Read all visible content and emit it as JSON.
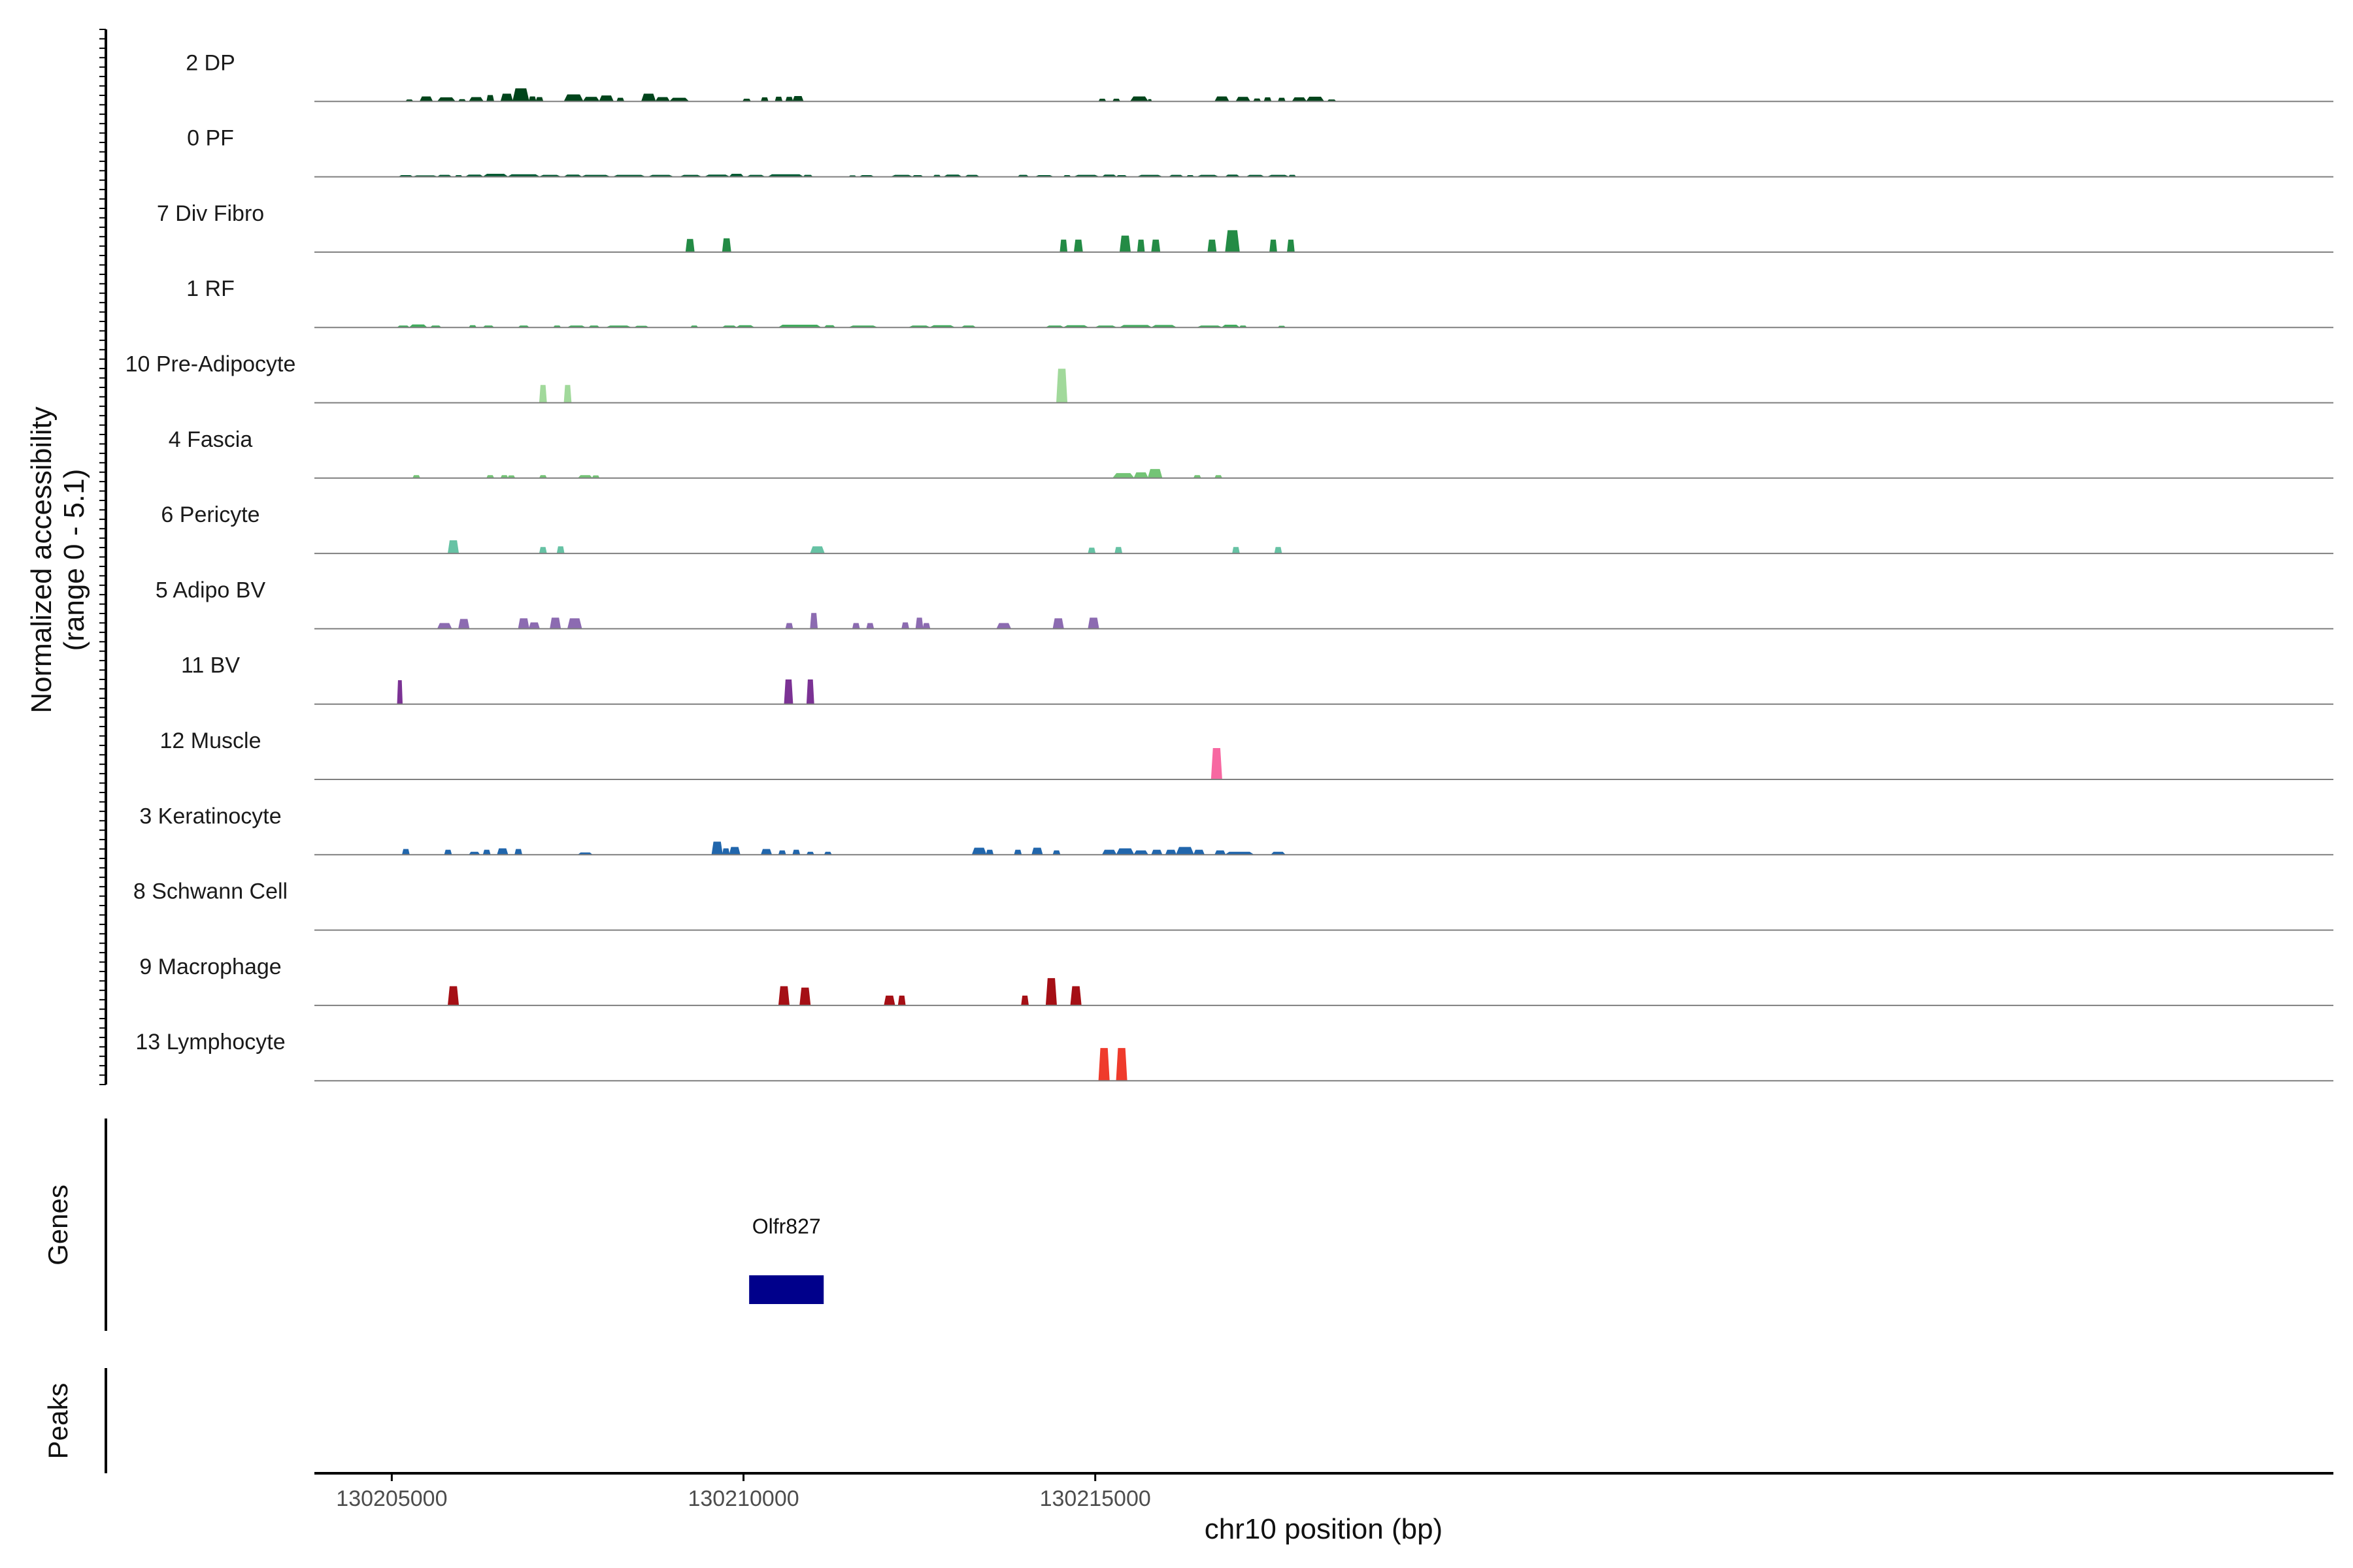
{
  "chart_data": {
    "type": "area",
    "ylabel": "Normalized accessibility",
    "ylabel_range": "(range 0 - 5.1)",
    "ylim": [
      0,
      5.1
    ],
    "xlabel": "chr10 position (bp)",
    "xlim": [
      130203900,
      130232600
    ],
    "x_ticks": [
      130205000,
      130210000,
      130215000
    ],
    "x_tick_labels": [
      "130205000",
      "130210000",
      "130215000"
    ],
    "gene_panel_label": "Genes",
    "peaks_panel_label": "Peaks",
    "genes": [
      {
        "name": "Olfr827",
        "start": 130210080,
        "end": 130211140,
        "color": "#00008B"
      }
    ],
    "tracks": [
      {
        "name": "2 DP",
        "color": "#00441B",
        "regions": [
          [
            130205200,
            130205300,
            0.12
          ],
          [
            130205400,
            130205580,
            0.35
          ],
          [
            130205650,
            130205900,
            0.28
          ],
          [
            130205950,
            130206050,
            0.15
          ],
          [
            130206100,
            130206300,
            0.3
          ],
          [
            130206350,
            130206450,
            0.45
          ],
          [
            130206550,
            130206720,
            0.55
          ],
          [
            130206720,
            130206950,
            0.95
          ],
          [
            130206950,
            130207050,
            0.35
          ],
          [
            130207050,
            130207150,
            0.3
          ],
          [
            130207450,
            130207720,
            0.5
          ],
          [
            130207720,
            130207950,
            0.32
          ],
          [
            130207950,
            130208150,
            0.42
          ],
          [
            130208200,
            130208300,
            0.25
          ],
          [
            130208550,
            130208750,
            0.55
          ],
          [
            130208750,
            130208950,
            0.3
          ],
          [
            130208950,
            130209220,
            0.25
          ],
          [
            130209990,
            130210100,
            0.18
          ],
          [
            130210250,
            130210350,
            0.28
          ],
          [
            130210450,
            130210550,
            0.33
          ],
          [
            130210600,
            130210700,
            0.32
          ],
          [
            130210700,
            130210850,
            0.38
          ],
          [
            130215050,
            130215150,
            0.18
          ],
          [
            130215250,
            130215350,
            0.18
          ],
          [
            130215500,
            130215750,
            0.35
          ],
          [
            130215750,
            130215800,
            0.15
          ],
          [
            130216700,
            130216900,
            0.35
          ],
          [
            130217000,
            130217200,
            0.32
          ],
          [
            130217250,
            130217350,
            0.2
          ],
          [
            130217400,
            130217500,
            0.28
          ],
          [
            130217600,
            130217700,
            0.25
          ],
          [
            130217800,
            130218000,
            0.28
          ],
          [
            130218000,
            130218250,
            0.33
          ],
          [
            130218300,
            130218420,
            0.12
          ]
        ]
      },
      {
        "name": "0 PF",
        "color": "#005A32",
        "regions": [
          [
            130205100,
            130205300,
            0.1
          ],
          [
            130205300,
            130205650,
            0.08
          ],
          [
            130205650,
            130205850,
            0.12
          ],
          [
            130205900,
            130206000,
            0.1
          ],
          [
            130206050,
            130206300,
            0.14
          ],
          [
            130206300,
            130206650,
            0.2
          ],
          [
            130206650,
            130207100,
            0.16
          ],
          [
            130207100,
            130207400,
            0.12
          ],
          [
            130207450,
            130207700,
            0.14
          ],
          [
            130207700,
            130208100,
            0.12
          ],
          [
            130208150,
            130208600,
            0.12
          ],
          [
            130208650,
            130209000,
            0.12
          ],
          [
            130209100,
            130209400,
            0.12
          ],
          [
            130209450,
            130209800,
            0.14
          ],
          [
            130209800,
            130210000,
            0.2
          ],
          [
            130210050,
            130210300,
            0.12
          ],
          [
            130210350,
            130210850,
            0.16
          ],
          [
            130210850,
            130210980,
            0.12
          ],
          [
            130211500,
            130211600,
            0.08
          ],
          [
            130211650,
            130211850,
            0.1
          ],
          [
            130212100,
            130212400,
            0.12
          ],
          [
            130212400,
            130212550,
            0.1
          ],
          [
            130212700,
            130212800,
            0.12
          ],
          [
            130212850,
            130213100,
            0.14
          ],
          [
            130213150,
            130213350,
            0.12
          ],
          [
            130213900,
            130214050,
            0.12
          ],
          [
            130214150,
            130214400,
            0.1
          ],
          [
            130214550,
            130214650,
            0.1
          ],
          [
            130214700,
            130215050,
            0.12
          ],
          [
            130215100,
            130215300,
            0.14
          ],
          [
            130215300,
            130215450,
            0.1
          ],
          [
            130215600,
            130215950,
            0.12
          ],
          [
            130216050,
            130216250,
            0.12
          ],
          [
            130216300,
            130216400,
            0.1
          ],
          [
            130216450,
            130216750,
            0.12
          ],
          [
            130216850,
            130217050,
            0.14
          ],
          [
            130217150,
            130217400,
            0.12
          ],
          [
            130217450,
            130217750,
            0.12
          ],
          [
            130217750,
            130217850,
            0.12
          ]
        ]
      },
      {
        "name": "7 Div Fibro",
        "color": "#238B45",
        "regions": [
          [
            130209180,
            130209300,
            0.95
          ],
          [
            130209700,
            130209820,
            1.0
          ],
          [
            130214500,
            130214600,
            0.9
          ],
          [
            130214700,
            130214820,
            0.9
          ],
          [
            130215350,
            130215500,
            1.2
          ],
          [
            130215600,
            130215700,
            0.9
          ],
          [
            130215800,
            130215920,
            0.9
          ],
          [
            130216600,
            130216720,
            0.9
          ],
          [
            130216850,
            130217050,
            1.6
          ],
          [
            130217480,
            130217580,
            0.9
          ],
          [
            130217730,
            130217830,
            0.9
          ]
        ]
      },
      {
        "name": "1 RF",
        "color": "#41AB5D",
        "regions": [
          [
            130205080,
            130205250,
            0.12
          ],
          [
            130205250,
            130205500,
            0.2
          ],
          [
            130205550,
            130205700,
            0.12
          ],
          [
            130206100,
            130206200,
            0.14
          ],
          [
            130206300,
            130206450,
            0.12
          ],
          [
            130206800,
            130206950,
            0.12
          ],
          [
            130207300,
            130207400,
            0.12
          ],
          [
            130207500,
            130207750,
            0.12
          ],
          [
            130207800,
            130207950,
            0.12
          ],
          [
            130208050,
            130208400,
            0.12
          ],
          [
            130208450,
            130208650,
            0.1
          ],
          [
            130209250,
            130209350,
            0.12
          ],
          [
            130209700,
            130209900,
            0.12
          ],
          [
            130209900,
            130210150,
            0.14
          ],
          [
            130210500,
            130211100,
            0.18
          ],
          [
            130211150,
            130211300,
            0.14
          ],
          [
            130211500,
            130211900,
            0.12
          ],
          [
            130212350,
            130212650,
            0.12
          ],
          [
            130212650,
            130213000,
            0.14
          ],
          [
            130213100,
            130213300,
            0.12
          ],
          [
            130214300,
            130214550,
            0.12
          ],
          [
            130214550,
            130214900,
            0.14
          ],
          [
            130215000,
            130215300,
            0.12
          ],
          [
            130215350,
            130215800,
            0.16
          ],
          [
            130215800,
            130216150,
            0.16
          ],
          [
            130216450,
            130216800,
            0.12
          ],
          [
            130216800,
            130217050,
            0.18
          ],
          [
            130217050,
            130217150,
            0.12
          ],
          [
            130217600,
            130217700,
            0.1
          ]
        ]
      },
      {
        "name": "10 Pre-Adipocyte",
        "color": "#A1D99B",
        "regions": [
          [
            130207100,
            130207200,
            1.3
          ],
          [
            130207450,
            130207550,
            1.3
          ],
          [
            130214450,
            130214600,
            2.5
          ]
        ]
      },
      {
        "name": "4 Fascia",
        "color": "#74C476",
        "regions": [
          [
            130205300,
            130205400,
            0.2
          ],
          [
            130206350,
            130206450,
            0.2
          ],
          [
            130206550,
            130206650,
            0.2
          ],
          [
            130206650,
            130206750,
            0.18
          ],
          [
            130207100,
            130207200,
            0.2
          ],
          [
            130207650,
            130207850,
            0.2
          ],
          [
            130207850,
            130207950,
            0.18
          ],
          [
            130215250,
            130215550,
            0.35
          ],
          [
            130215550,
            130215750,
            0.4
          ],
          [
            130215750,
            130215950,
            0.65
          ],
          [
            130216400,
            130216500,
            0.2
          ],
          [
            130216700,
            130216800,
            0.2
          ]
        ]
      },
      {
        "name": "6 Pericyte",
        "color": "#66C2A4",
        "regions": [
          [
            130205800,
            130205950,
            0.95
          ],
          [
            130207100,
            130207200,
            0.45
          ],
          [
            130207350,
            130207450,
            0.5
          ],
          [
            130210950,
            130211150,
            0.5
          ],
          [
            130214900,
            130215000,
            0.4
          ],
          [
            130215280,
            130215380,
            0.45
          ],
          [
            130216950,
            130217050,
            0.45
          ],
          [
            130217550,
            130217650,
            0.45
          ]
        ]
      },
      {
        "name": "5 Adipo BV",
        "color": "#8C6BB1",
        "regions": [
          [
            130205650,
            130205850,
            0.4
          ],
          [
            130205950,
            130206100,
            0.7
          ],
          [
            130206800,
            130206950,
            0.75
          ],
          [
            130206950,
            130207100,
            0.45
          ],
          [
            130207250,
            130207400,
            0.8
          ],
          [
            130207500,
            130207700,
            0.75
          ],
          [
            130210600,
            130210700,
            0.4
          ],
          [
            130210950,
            130211050,
            1.15
          ],
          [
            130211550,
            130211650,
            0.4
          ],
          [
            130211750,
            130211850,
            0.4
          ],
          [
            130212250,
            130212350,
            0.45
          ],
          [
            130212450,
            130212550,
            0.8
          ],
          [
            130212550,
            130212650,
            0.4
          ],
          [
            130213600,
            130213800,
            0.4
          ],
          [
            130214400,
            130214550,
            0.75
          ],
          [
            130214900,
            130215050,
            0.8
          ]
        ]
      },
      {
        "name": "11 BV",
        "color": "#7B3294",
        "regions": [
          [
            130205080,
            130205150,
            1.75
          ],
          [
            130210580,
            130210700,
            1.8
          ],
          [
            130210900,
            130211000,
            1.8
          ]
        ]
      },
      {
        "name": "12 Muscle",
        "color": "#F768A1",
        "regions": [
          [
            130216650,
            130216800,
            2.3
          ]
        ]
      },
      {
        "name": "3 Keratinocyte",
        "color": "#2166AC",
        "regions": [
          [
            130205150,
            130205250,
            0.4
          ],
          [
            130205750,
            130205850,
            0.35
          ],
          [
            130206100,
            130206250,
            0.2
          ],
          [
            130206300,
            130206400,
            0.35
          ],
          [
            130206500,
            130206650,
            0.45
          ],
          [
            130206750,
            130206850,
            0.4
          ],
          [
            130207650,
            130207850,
            0.15
          ],
          [
            130209550,
            130209700,
            0.95
          ],
          [
            130209700,
            130209800,
            0.45
          ],
          [
            130209800,
            130209950,
            0.55
          ],
          [
            130210250,
            130210400,
            0.4
          ],
          [
            130210500,
            130210600,
            0.3
          ],
          [
            130210700,
            130210800,
            0.35
          ],
          [
            130210900,
            130211000,
            0.2
          ],
          [
            130211150,
            130211250,
            0.2
          ],
          [
            130213250,
            130213450,
            0.5
          ],
          [
            130213450,
            130213550,
            0.35
          ],
          [
            130213850,
            130213950,
            0.35
          ],
          [
            130214100,
            130214250,
            0.5
          ],
          [
            130214400,
            130214500,
            0.3
          ],
          [
            130215100,
            130215300,
            0.35
          ],
          [
            130215300,
            130215550,
            0.45
          ],
          [
            130215550,
            130215750,
            0.3
          ],
          [
            130215800,
            130215950,
            0.35
          ],
          [
            130216000,
            130216150,
            0.35
          ],
          [
            130216150,
            130216400,
            0.55
          ],
          [
            130216400,
            130216550,
            0.35
          ],
          [
            130216700,
            130216850,
            0.3
          ],
          [
            130216850,
            130217250,
            0.2
          ],
          [
            130217500,
            130217700,
            0.2
          ]
        ]
      },
      {
        "name": "8 Schwann Cell",
        "color": "#000000",
        "regions": []
      },
      {
        "name": "9 Macrophage",
        "color": "#A50F15",
        "regions": [
          [
            130205800,
            130205950,
            1.4
          ],
          [
            130210500,
            130210650,
            1.4
          ],
          [
            130210800,
            130210950,
            1.3
          ],
          [
            130212000,
            130212150,
            0.7
          ],
          [
            130212200,
            130212300,
            0.7
          ],
          [
            130213950,
            130214050,
            0.7
          ],
          [
            130214300,
            130214450,
            2.0
          ],
          [
            130214650,
            130214800,
            1.4
          ]
        ]
      },
      {
        "name": "13 Lymphocyte",
        "color": "#EF3B2C",
        "regions": [
          [
            130215050,
            130215200,
            2.4
          ],
          [
            130215300,
            130215450,
            2.4
          ]
        ]
      }
    ]
  }
}
